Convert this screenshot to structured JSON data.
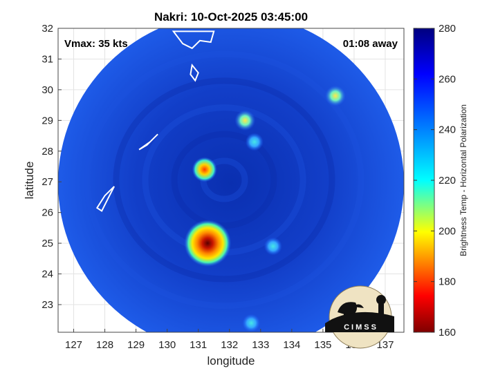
{
  "chart_data": {
    "type": "heatmap",
    "title": "Nakri: 10-Oct-2025 03:45:00",
    "xlabel": "longitude",
    "ylabel": "latitude",
    "xlim": [
      126.5,
      137.6
    ],
    "ylim": [
      22.1,
      32.0
    ],
    "x_ticks": [
      "127",
      "128",
      "129",
      "130",
      "131",
      "132",
      "133",
      "134",
      "135",
      "136",
      "137"
    ],
    "y_ticks": [
      "32",
      "31",
      "30",
      "29",
      "28",
      "27",
      "26",
      "25",
      "24",
      "23"
    ],
    "grid": true,
    "annotations": {
      "vmax": "Vmax: 35 kts",
      "time_offset": "01:08 away"
    },
    "colorbar": {
      "label": "Brightness Temp - Horizontal Polarization",
      "min": 160,
      "max": 280,
      "ticks": [
        "280",
        "260",
        "240",
        "220",
        "200",
        "180",
        "160"
      ]
    },
    "swath": {
      "center": [
        132.05,
        26.95
      ],
      "radius_deg": 5.55
    },
    "features": [
      {
        "lon": 131.3,
        "lat": 25.0,
        "tb_min": 165
      },
      {
        "lon": 131.2,
        "lat": 27.4,
        "tb_min": 190
      },
      {
        "lon": 132.5,
        "lat": 29.0,
        "tb_min": 205
      },
      {
        "lon": 135.4,
        "lat": 29.8,
        "tb_min": 215
      },
      {
        "lon": 132.7,
        "lat": 22.4,
        "tb_min": 225
      },
      {
        "lon": 132.8,
        "lat": 28.3,
        "tb_min": 240
      },
      {
        "lon": 133.4,
        "lat": 24.9,
        "tb_min": 242
      }
    ]
  },
  "logo": {
    "text": "CIMSS"
  }
}
